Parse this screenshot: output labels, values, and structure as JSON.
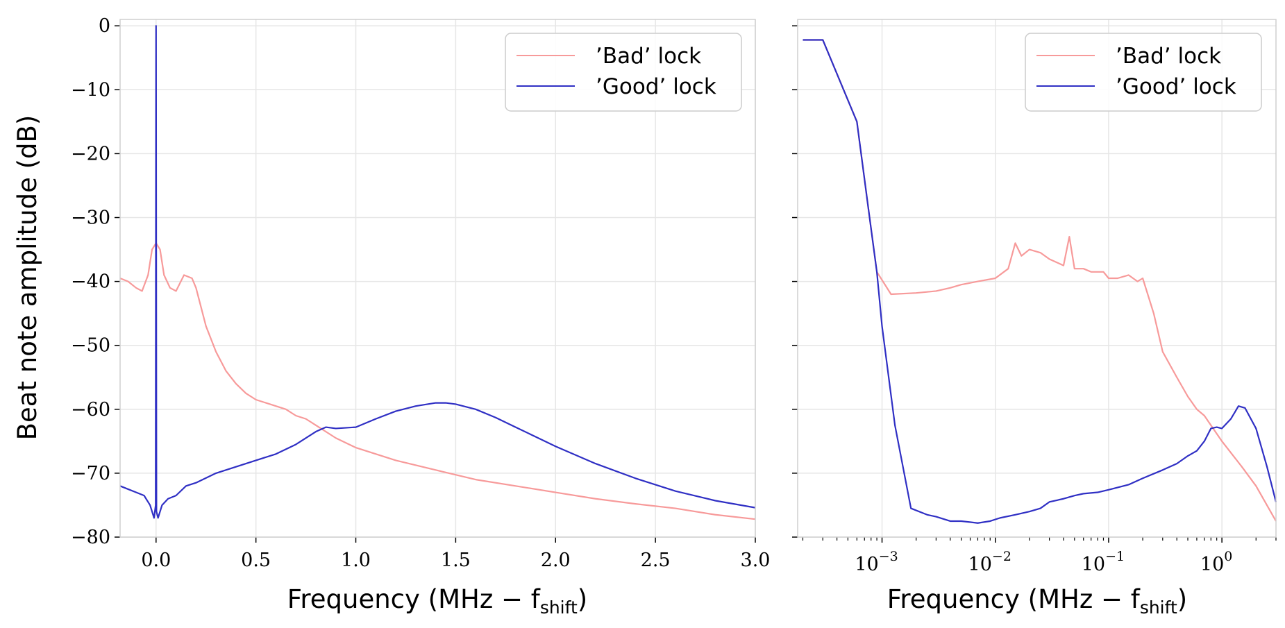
{
  "figure": {
    "ylabel": "Beat note amplitude (dB)",
    "left_xlabel": "Frequency (MHz − f",
    "right_xlabel": "Frequency (MHz − f",
    "xlabel_subscript": "shift",
    "xlabel_close": ")"
  },
  "legend": {
    "bad_label": "’Bad’ lock",
    "good_label": "’Good’ lock"
  },
  "colors": {
    "bad": "#f79a9a",
    "good": "#2f2fc4",
    "grid": "#e6e6e6",
    "spine": "#cfcfcf"
  },
  "chart_data": [
    {
      "type": "line",
      "xscale": "linear",
      "xlim": [
        -0.18,
        3.0
      ],
      "ylim": [
        -80,
        1
      ],
      "grid": true,
      "legend_position": "top-right",
      "xticks": [
        0.0,
        0.5,
        1.0,
        1.5,
        2.0,
        2.5,
        3.0
      ],
      "xtick_labels": [
        "0.0",
        "0.5",
        "1.0",
        "1.5",
        "2.0",
        "2.5",
        "3.0"
      ],
      "yticks": [
        0,
        -10,
        -20,
        -30,
        -40,
        -50,
        -60,
        -70,
        -80
      ],
      "ytick_labels": [
        "0",
        "−10",
        "−20",
        "−30",
        "−40",
        "−50",
        "−60",
        "−70",
        "−80"
      ],
      "series": [
        {
          "name": "’Bad’ lock",
          "x": [
            -0.18,
            -0.14,
            -0.1,
            -0.07,
            -0.04,
            -0.02,
            0.0,
            0.02,
            0.04,
            0.07,
            0.1,
            0.14,
            0.18,
            0.2,
            0.25,
            0.3,
            0.35,
            0.4,
            0.45,
            0.5,
            0.55,
            0.6,
            0.65,
            0.7,
            0.75,
            0.8,
            0.9,
            1.0,
            1.2,
            1.4,
            1.6,
            1.8,
            2.0,
            2.2,
            2.4,
            2.6,
            2.8,
            3.0
          ],
          "y": [
            -39.5,
            -40,
            -41,
            -41.5,
            -39,
            -35,
            -34,
            -35,
            -39,
            -41,
            -41.5,
            -39,
            -39.5,
            -41,
            -47,
            -51,
            -54,
            -56,
            -57.5,
            -58.5,
            -59,
            -59.5,
            -60,
            -61,
            -61.5,
            -62.5,
            -64.5,
            -66,
            -68,
            -69.5,
            -71,
            -72,
            -73,
            -74,
            -74.8,
            -75.5,
            -76.5,
            -77.2
          ]
        },
        {
          "name": "’Good’ lock",
          "x": [
            -0.18,
            -0.14,
            -0.1,
            -0.06,
            -0.03,
            -0.01,
            -0.002,
            0.0,
            0.002,
            0.01,
            0.03,
            0.06,
            0.1,
            0.15,
            0.2,
            0.3,
            0.4,
            0.5,
            0.6,
            0.7,
            0.8,
            0.85,
            0.9,
            1.0,
            1.1,
            1.2,
            1.3,
            1.4,
            1.45,
            1.5,
            1.6,
            1.7,
            1.8,
            2.0,
            2.2,
            2.4,
            2.6,
            2.8,
            3.0
          ],
          "y": [
            -72,
            -72.5,
            -73,
            -73.5,
            -75,
            -77,
            -75,
            0,
            -76,
            -77,
            -75,
            -74,
            -73.5,
            -72,
            -71.5,
            -70,
            -69,
            -68,
            -67,
            -65.5,
            -63.5,
            -62.8,
            -63,
            -62.8,
            -61.5,
            -60.3,
            -59.5,
            -59,
            -59,
            -59.2,
            -60,
            -61.3,
            -62.8,
            -65.8,
            -68.5,
            -70.8,
            -72.8,
            -74.3,
            -75.4
          ]
        }
      ]
    },
    {
      "type": "line",
      "xscale": "log",
      "xlim": [
        0.00018,
        3.0
      ],
      "ylim": [
        -80,
        1
      ],
      "grid": true,
      "legend_position": "top-right",
      "xticks": [
        0.001,
        0.01,
        0.1,
        1
      ],
      "xtick_bases": [
        "10",
        "10",
        "10",
        "10"
      ],
      "xtick_exponents": [
        "−3",
        "−2",
        "−1",
        "0"
      ],
      "series": [
        {
          "name": "’Bad’ lock",
          "x": [
            0.0002,
            0.0003,
            0.0006,
            0.00075,
            0.0009,
            0.0012,
            0.002,
            0.003,
            0.004,
            0.005,
            0.007,
            0.01,
            0.013,
            0.015,
            0.017,
            0.02,
            0.025,
            0.03,
            0.04,
            0.045,
            0.05,
            0.06,
            0.07,
            0.09,
            0.1,
            0.12,
            0.15,
            0.18,
            0.2,
            0.25,
            0.3,
            0.4,
            0.5,
            0.6,
            0.7,
            0.8,
            1.0,
            1.5,
            2.0,
            3.0
          ],
          "y": [
            -2.2,
            -2.2,
            -15,
            -28,
            -38.5,
            -42,
            -41.8,
            -41.5,
            -41,
            -40.5,
            -40,
            -39.5,
            -38,
            -34,
            -36,
            -35,
            -35.5,
            -36.5,
            -37.5,
            -33,
            -38,
            -38,
            -38.5,
            -38.5,
            -39.5,
            -39.5,
            -39,
            -40,
            -39.5,
            -45,
            -51,
            -55,
            -58,
            -60,
            -61,
            -62.5,
            -65,
            -69,
            -72,
            -77.5
          ]
        },
        {
          "name": "’Good’ lock",
          "x": [
            0.0002,
            0.0003,
            0.0006,
            0.00075,
            0.0009,
            0.001,
            0.0013,
            0.0018,
            0.0025,
            0.003,
            0.004,
            0.005,
            0.007,
            0.009,
            0.011,
            0.015,
            0.02,
            0.025,
            0.03,
            0.04,
            0.05,
            0.06,
            0.08,
            0.1,
            0.15,
            0.2,
            0.3,
            0.4,
            0.5,
            0.6,
            0.7,
            0.8,
            0.9,
            1.0,
            1.2,
            1.4,
            1.6,
            2.0,
            2.5,
            3.0
          ],
          "y": [
            -2.2,
            -2.2,
            -15,
            -28,
            -38.5,
            -47,
            -62.5,
            -75.5,
            -76.5,
            -76.8,
            -77.5,
            -77.5,
            -77.8,
            -77.5,
            -77,
            -76.5,
            -76,
            -75.5,
            -74.5,
            -74,
            -73.5,
            -73.2,
            -73,
            -72.6,
            -71.8,
            -70.8,
            -69.5,
            -68.5,
            -67.3,
            -66.5,
            -65,
            -63,
            -62.8,
            -63,
            -61.5,
            -59.5,
            -59.8,
            -63,
            -69,
            -74.5
          ]
        }
      ]
    }
  ]
}
